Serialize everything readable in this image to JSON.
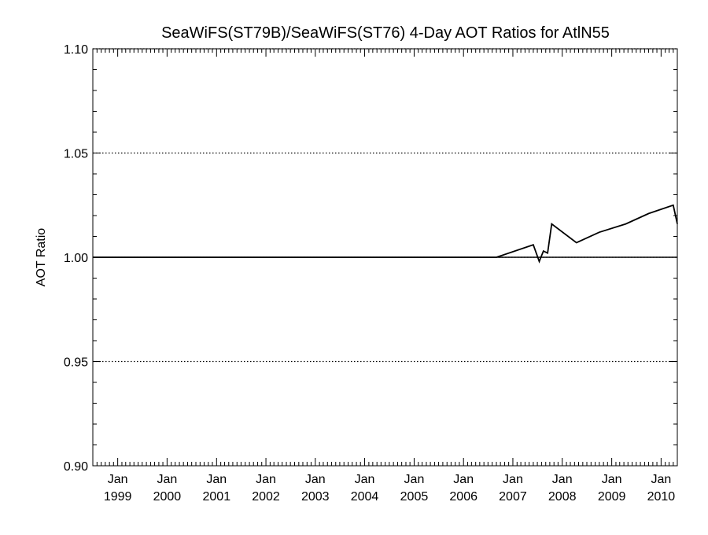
{
  "chart_data": {
    "type": "line",
    "title": "SeaWiFS(ST79B)/SeaWiFS(ST76) 4-Day AOT Ratios for AtlN55",
    "xlabel": "",
    "ylabel": "AOT Ratio",
    "ylim": [
      0.9,
      1.1
    ],
    "xlim": [
      "1998-07-01",
      "2010-05-01"
    ],
    "y_major_ticks": [
      "0.90",
      "0.95",
      "1.00",
      "1.05",
      "1.10"
    ],
    "y_gridlines": [
      0.95,
      1.0,
      1.05
    ],
    "y_grid_style": "dotted",
    "reference_line": 1.0,
    "x_ticks": [
      {
        "date": "1999-01-01",
        "line1": "Jan",
        "line2": "1999"
      },
      {
        "date": "2000-01-01",
        "line1": "Jan",
        "line2": "2000"
      },
      {
        "date": "2001-01-01",
        "line1": "Jan",
        "line2": "2001"
      },
      {
        "date": "2002-01-01",
        "line1": "Jan",
        "line2": "2002"
      },
      {
        "date": "2003-01-01",
        "line1": "Jan",
        "line2": "2003"
      },
      {
        "date": "2004-01-01",
        "line1": "Jan",
        "line2": "2004"
      },
      {
        "date": "2005-01-01",
        "line1": "Jan",
        "line2": "2005"
      },
      {
        "date": "2006-01-01",
        "line1": "Jan",
        "line2": "2006"
      },
      {
        "date": "2007-01-01",
        "line1": "Jan",
        "line2": "2007"
      },
      {
        "date": "2008-01-01",
        "line1": "Jan",
        "line2": "2008"
      },
      {
        "date": "2009-01-01",
        "line1": "Jan",
        "line2": "2009"
      },
      {
        "date": "2010-01-01",
        "line1": "Jan",
        "line2": "2010"
      }
    ],
    "series": [
      {
        "x": [
          "1998-07-01",
          "2006-09-01",
          "2007-06-01",
          "2007-07-15",
          "2007-08-15",
          "2007-09-15",
          "2007-10-15",
          "2008-04-15",
          "2008-10-01",
          "2009-04-15",
          "2009-10-01",
          "2010-04-01",
          "2010-05-01"
        ],
        "y": [
          1.0,
          1.0,
          1.006,
          0.998,
          1.003,
          1.002,
          1.016,
          1.007,
          1.012,
          1.016,
          1.021,
          1.025,
          1.016
        ]
      }
    ],
    "line_color": "#000000"
  }
}
